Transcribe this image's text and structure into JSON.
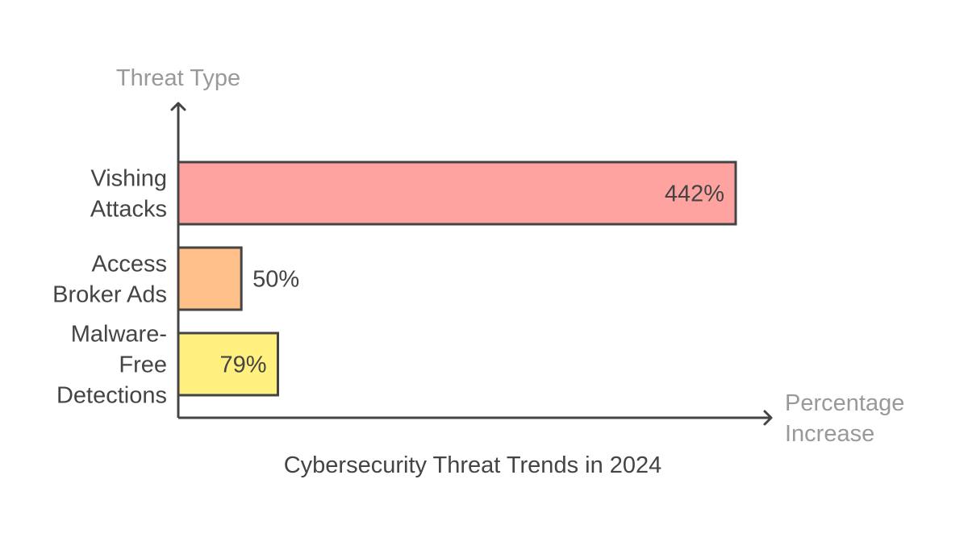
{
  "chart_data": {
    "type": "bar",
    "orientation": "horizontal",
    "title": "Cybersecurity Threat Trends in 2024",
    "ylabel": "Threat Type",
    "xlabel": "Percentage Increase",
    "categories": [
      "Vishing Attacks",
      "Access Broker Ads",
      "Malware-Free Detections"
    ],
    "values": [
      442,
      50,
      79
    ],
    "data_labels": [
      "442%",
      "50%",
      "79%"
    ],
    "colors": [
      "#FFA3A1",
      "#FFC08A",
      "#FFF07F"
    ],
    "xlim": [
      0,
      442
    ],
    "grid": false,
    "legend": "none"
  }
}
